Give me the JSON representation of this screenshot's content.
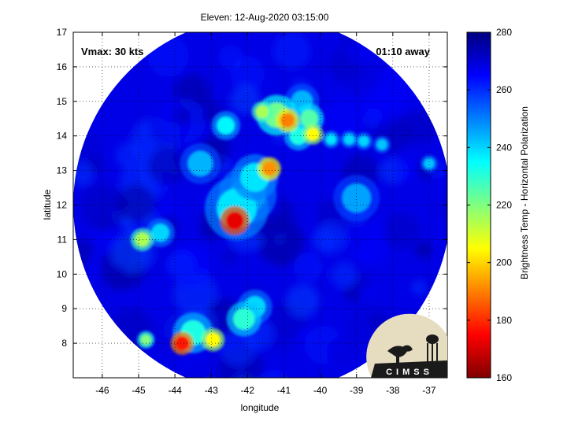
{
  "chart_data": {
    "type": "heatmap",
    "title": "Eleven: 12-Aug-2020 03:15:00",
    "xlabel": "longitude",
    "ylabel": "latitude",
    "xlim": [
      -46.8,
      -36.5
    ],
    "ylim": [
      7.0,
      17.0
    ],
    "xticks": [
      -46,
      -45,
      -44,
      -43,
      -42,
      -41,
      -40,
      -39,
      -38,
      -37
    ],
    "yticks": [
      8,
      9,
      10,
      11,
      12,
      13,
      14,
      15,
      16,
      17
    ],
    "grid": true,
    "annotations": {
      "vmax": "Vmax: 30 kts",
      "time_away": "01:10 away"
    },
    "colorbar": {
      "label": "Brightness Temp - Horizontal Polarization",
      "range": [
        160,
        280
      ],
      "ticks": [
        160,
        180,
        200,
        220,
        240,
        260,
        280
      ],
      "colormap": "jet"
    },
    "swath": {
      "center": [
        -41.6,
        12.0
      ],
      "radius_deg": 5.2
    },
    "background_value": 268,
    "cold_features": [
      {
        "lon": -42.35,
        "lat": 11.55,
        "value": 172,
        "size": 0.25
      },
      {
        "lon": -42.3,
        "lat": 11.9,
        "value": 238,
        "size": 0.55
      },
      {
        "lon": -42.0,
        "lat": 12.3,
        "value": 240,
        "size": 0.5
      },
      {
        "lon": -41.4,
        "lat": 13.05,
        "value": 192,
        "size": 0.2
      },
      {
        "lon": -41.8,
        "lat": 12.8,
        "value": 238,
        "size": 0.4
      },
      {
        "lon": -40.9,
        "lat": 14.45,
        "value": 190,
        "size": 0.2
      },
      {
        "lon": -41.2,
        "lat": 14.6,
        "value": 222,
        "size": 0.35
      },
      {
        "lon": -40.2,
        "lat": 14.05,
        "value": 205,
        "size": 0.18
      },
      {
        "lon": -40.3,
        "lat": 14.5,
        "value": 225,
        "size": 0.25
      },
      {
        "lon": -41.6,
        "lat": 14.7,
        "value": 215,
        "size": 0.18
      },
      {
        "lon": -40.6,
        "lat": 14.0,
        "value": 232,
        "size": 0.25
      },
      {
        "lon": -42.6,
        "lat": 14.3,
        "value": 236,
        "size": 0.25
      },
      {
        "lon": -40.5,
        "lat": 15.0,
        "value": 244,
        "size": 0.3
      },
      {
        "lon": -44.9,
        "lat": 11.0,
        "value": 215,
        "size": 0.2
      },
      {
        "lon": -44.4,
        "lat": 11.2,
        "value": 240,
        "size": 0.25
      },
      {
        "lon": -43.8,
        "lat": 8.0,
        "value": 178,
        "size": 0.2
      },
      {
        "lon": -42.95,
        "lat": 8.1,
        "value": 205,
        "size": 0.2
      },
      {
        "lon": -44.8,
        "lat": 8.1,
        "value": 220,
        "size": 0.15
      },
      {
        "lon": -42.1,
        "lat": 8.7,
        "value": 230,
        "size": 0.3
      },
      {
        "lon": -41.8,
        "lat": 9.05,
        "value": 240,
        "size": 0.3
      },
      {
        "lon": -43.5,
        "lat": 8.3,
        "value": 232,
        "size": 0.35
      },
      {
        "lon": -39.7,
        "lat": 13.9,
        "value": 238,
        "size": 0.15
      },
      {
        "lon": -39.2,
        "lat": 13.9,
        "value": 240,
        "size": 0.15
      },
      {
        "lon": -38.8,
        "lat": 13.85,
        "value": 240,
        "size": 0.15
      },
      {
        "lon": -38.3,
        "lat": 13.75,
        "value": 242,
        "size": 0.15
      },
      {
        "lon": -37.0,
        "lat": 13.2,
        "value": 242,
        "size": 0.15
      },
      {
        "lon": -43.3,
        "lat": 13.2,
        "value": 244,
        "size": 0.35
      },
      {
        "lon": -39.0,
        "lat": 12.2,
        "value": 246,
        "size": 0.4
      }
    ]
  },
  "logo": {
    "text": "CIMSS"
  }
}
